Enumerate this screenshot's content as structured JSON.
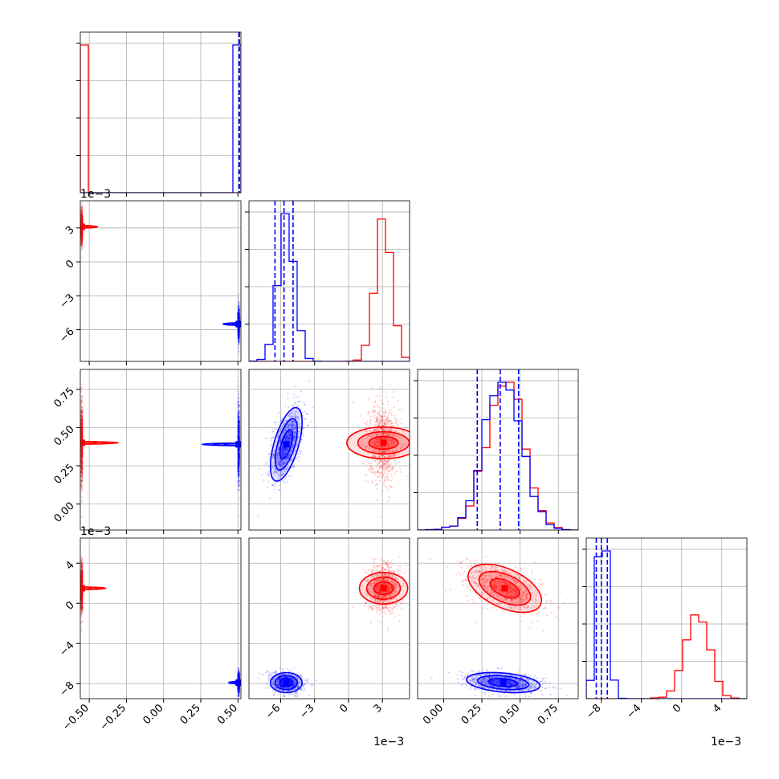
{
  "colors": {
    "a": "#ff0000",
    "b": "#0000ff",
    "grid": "#b0b0b0",
    "frame": "#000000"
  },
  "offset_labels": [
    "1e−3",
    "1e−3",
    "1e−3",
    "1e−3"
  ],
  "chart_data": {
    "type": "scatter",
    "layout": "corner",
    "grid": true,
    "params": [
      {
        "range": [
          -0.56,
          0.52
        ],
        "ticks": [
          -0.5,
          -0.25,
          0.0,
          0.25,
          0.5
        ],
        "tick_labels": [
          "−0.50",
          "−0.25",
          "0.00",
          "0.25",
          "0.50"
        ]
      },
      {
        "range": [
          -0.0088,
          0.0054
        ],
        "ticks": [
          -0.006,
          -0.003,
          0.0,
          0.003
        ],
        "tick_labels": [
          "−6",
          "−3",
          "0",
          "3"
        ],
        "offset": "1e−3"
      },
      {
        "range": [
          -0.17,
          0.88
        ],
        "ticks": [
          0.0,
          0.25,
          0.5,
          0.75
        ],
        "tick_labels": [
          "0.00",
          "0.25",
          "0.50",
          "0.75"
        ]
      },
      {
        "range": [
          -0.0095,
          0.0065
        ],
        "ticks": [
          -0.008,
          -0.004,
          0.0,
          0.004
        ],
        "tick_labels": [
          "−8",
          "−4",
          "0",
          "4"
        ],
        "offset": "1e−3"
      }
    ],
    "series": [
      {
        "color": "red",
        "mean": [
          -0.55,
          0.0031,
          0.4,
          0.0015
        ],
        "sd": [
          0.0025,
          0.0007,
          0.12,
          0.0012
        ],
        "corr": [
          [
            2,
            3,
            -0.5
          ]
        ]
      },
      {
        "color": "blue",
        "mean": [
          0.505,
          -0.0055,
          0.39,
          -0.0079
        ],
        "sd": [
          0.0025,
          0.0007,
          0.12,
          0.0005
        ],
        "corr": [
          [
            1,
            2,
            0.6
          ],
          [
            2,
            3,
            -0.3
          ]
        ]
      }
    ],
    "quantile_lines": [
      {
        "series": 1,
        "param": 0,
        "values": [
          0.5075,
          0.5085,
          0.5095
        ]
      },
      {
        "series": 1,
        "param": 1,
        "values": [
          -0.0065,
          -0.0057,
          -0.0049
        ]
      },
      {
        "series": 1,
        "param": 2,
        "values": [
          0.22,
          0.37,
          0.49
        ]
      },
      {
        "series": 1,
        "param": 3,
        "values": [
          -0.0085,
          -0.008,
          -0.0074
        ]
      }
    ]
  }
}
